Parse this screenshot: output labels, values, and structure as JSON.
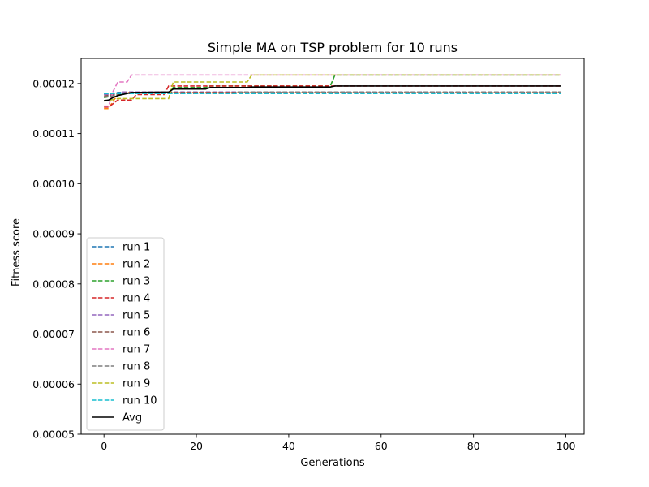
{
  "chart_data": {
    "type": "line",
    "title": "Simple MA on TSP problem for 10 runs",
    "xlabel": "Generations",
    "ylabel": "Fitness score",
    "xlim": [
      -4.95,
      103.95
    ],
    "ylim": [
      5e-05,
      0.000125
    ],
    "xticks": [
      0,
      20,
      40,
      60,
      80,
      100
    ],
    "xtick_labels": [
      "0",
      "20",
      "40",
      "60",
      "80",
      "100"
    ],
    "yticks": [
      5e-05,
      6e-05,
      7e-05,
      8e-05,
      9e-05,
      0.0001,
      0.00011,
      0.00012
    ],
    "ytick_labels": [
      "0.00005",
      "0.00006",
      "0.00007",
      "0.00008",
      "0.00009",
      "0.00010",
      "0.00011",
      "0.00012"
    ],
    "grid": false,
    "legend_position": "lower-left",
    "series": [
      {
        "name": "run 1",
        "color": "#1f77b4",
        "style": "dashed",
        "points": [
          [
            0,
            0.0001179
          ],
          [
            1,
            0.0001179
          ],
          [
            2,
            0.000118
          ],
          [
            3,
            0.0001182
          ],
          [
            99,
            0.0001182
          ]
        ]
      },
      {
        "name": "run 2",
        "color": "#ff7f0e",
        "style": "dashed",
        "points": [
          [
            0,
            0.000115
          ],
          [
            1,
            0.000115
          ],
          [
            2,
            0.0001165
          ],
          [
            3,
            0.0001178
          ],
          [
            5,
            0.0001182
          ],
          [
            99,
            0.0001182
          ]
        ]
      },
      {
        "name": "run 3",
        "color": "#2ca02c",
        "style": "dashed",
        "points": [
          [
            0,
            0.0001172
          ],
          [
            2,
            0.0001175
          ],
          [
            4,
            0.000118
          ],
          [
            14,
            0.000118
          ],
          [
            15,
            0.0001192
          ],
          [
            22,
            0.0001192
          ],
          [
            23,
            0.0001195
          ],
          [
            49,
            0.0001195
          ],
          [
            50,
            0.0001217
          ],
          [
            99,
            0.0001217
          ]
        ]
      },
      {
        "name": "run 4",
        "color": "#d62728",
        "style": "dashed",
        "points": [
          [
            0,
            0.0001153
          ],
          [
            1,
            0.0001153
          ],
          [
            2,
            0.000116
          ],
          [
            3,
            0.0001167
          ],
          [
            6,
            0.0001167
          ],
          [
            7,
            0.0001178
          ],
          [
            13,
            0.0001178
          ],
          [
            14,
            0.0001195
          ],
          [
            99,
            0.0001195
          ]
        ]
      },
      {
        "name": "run 5",
        "color": "#9467bd",
        "style": "dashed",
        "points": [
          [
            0,
            0.0001178
          ],
          [
            3,
            0.0001178
          ],
          [
            4,
            0.0001183
          ],
          [
            99,
            0.0001183
          ]
        ]
      },
      {
        "name": "run 6",
        "color": "#8c564b",
        "style": "dashed",
        "points": [
          [
            0,
            0.0001175
          ],
          [
            3,
            0.0001178
          ],
          [
            5,
            0.0001182
          ],
          [
            99,
            0.0001182
          ]
        ]
      },
      {
        "name": "run 7",
        "color": "#e377c2",
        "style": "dashed",
        "points": [
          [
            0,
            0.0001155
          ],
          [
            1,
            0.0001155
          ],
          [
            2,
            0.0001185
          ],
          [
            3,
            0.0001203
          ],
          [
            5,
            0.0001203
          ],
          [
            6,
            0.0001217
          ],
          [
            99,
            0.0001217
          ]
        ]
      },
      {
        "name": "run 8",
        "color": "#7f7f7f",
        "style": "dashed",
        "points": [
          [
            0,
            0.0001173
          ],
          [
            2,
            0.0001175
          ],
          [
            3,
            0.000118
          ],
          [
            28,
            0.000118
          ],
          [
            29,
            0.0001183
          ],
          [
            99,
            0.0001183
          ]
        ]
      },
      {
        "name": "run 9",
        "color": "#bcbd22",
        "style": "dashed",
        "points": [
          [
            0,
            0.0001165
          ],
          [
            2,
            0.0001168
          ],
          [
            3,
            0.000117
          ],
          [
            14,
            0.000117
          ],
          [
            15,
            0.0001203
          ],
          [
            31,
            0.0001203
          ],
          [
            32,
            0.0001217
          ],
          [
            99,
            0.0001217
          ]
        ]
      },
      {
        "name": "run 10",
        "color": "#17becf",
        "style": "dashed",
        "points": [
          [
            0,
            0.000118
          ],
          [
            99,
            0.000118
          ]
        ]
      },
      {
        "name": "Avg",
        "color": "#000000",
        "style": "solid",
        "points": [
          [
            0,
            0.0001166
          ],
          [
            1,
            0.0001167
          ],
          [
            2,
            0.0001172
          ],
          [
            3,
            0.0001176
          ],
          [
            4,
            0.0001178
          ],
          [
            5,
            0.000118
          ],
          [
            6,
            0.0001182
          ],
          [
            14,
            0.0001183
          ],
          [
            15,
            0.0001189
          ],
          [
            22,
            0.0001189
          ],
          [
            23,
            0.0001192
          ],
          [
            31,
            0.0001192
          ],
          [
            32,
            0.0001193
          ],
          [
            49,
            0.0001193
          ],
          [
            50,
            0.0001195
          ],
          [
            99,
            0.0001195
          ]
        ]
      }
    ]
  }
}
